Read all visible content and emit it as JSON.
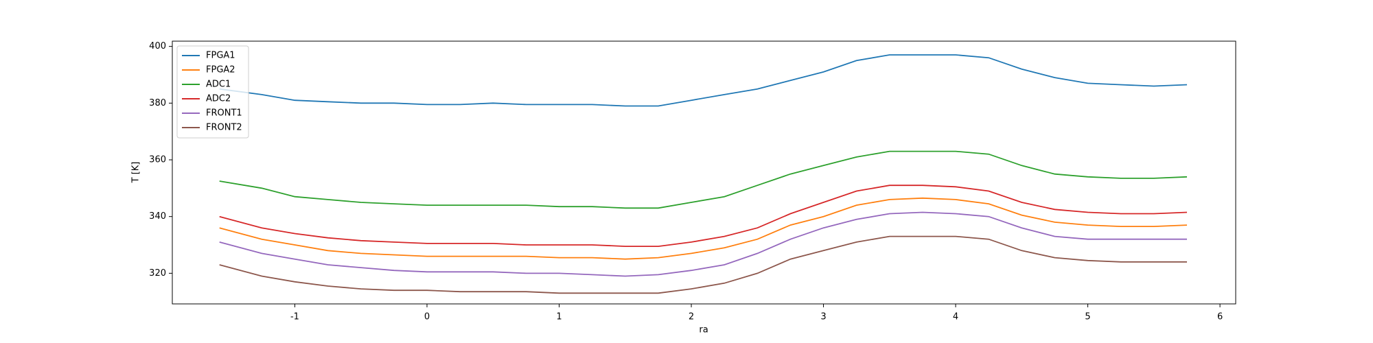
{
  "chart_data": {
    "type": "line",
    "xlabel": "ra",
    "ylabel": "T [K]",
    "x": [
      -1.57,
      -1.25,
      -1.0,
      -0.75,
      -0.5,
      -0.25,
      0,
      0.25,
      0.5,
      0.75,
      1.0,
      1.25,
      1.5,
      1.75,
      2.0,
      2.25,
      2.5,
      2.75,
      3.0,
      3.25,
      3.5,
      3.75,
      4.0,
      4.25,
      4.5,
      4.75,
      5.0,
      5.25,
      5.5,
      5.75
    ],
    "series": [
      {
        "name": "FPGA1",
        "color": "#1f77b4",
        "values": [
          385,
          383,
          381,
          380.5,
          380,
          380,
          379.5,
          379.5,
          380,
          379.5,
          379.5,
          379.5,
          379,
          379,
          381,
          383,
          385,
          388,
          391,
          395,
          397,
          397,
          397,
          396,
          392,
          389,
          387,
          386.5,
          386,
          386.5
        ]
      },
      {
        "name": "FPGA2",
        "color": "#ff7f0e",
        "values": [
          336,
          332,
          330,
          328,
          327,
          326.5,
          326,
          326,
          326,
          326,
          325.5,
          325.5,
          325,
          325.5,
          327,
          329,
          332,
          337,
          340,
          344,
          346,
          346.5,
          346,
          344.5,
          340.5,
          338,
          337,
          336.5,
          336.5,
          337
        ]
      },
      {
        "name": "ADC1",
        "color": "#2ca02c",
        "values": [
          352.5,
          350,
          347,
          346,
          345,
          344.5,
          344,
          344,
          344,
          344,
          343.5,
          343.5,
          343,
          343,
          345,
          347,
          351,
          355,
          358,
          361,
          363,
          363,
          363,
          362,
          358,
          355,
          354,
          353.5,
          353.5,
          354
        ]
      },
      {
        "name": "ADC2",
        "color": "#d62728",
        "values": [
          340,
          336,
          334,
          332.5,
          331.5,
          331,
          330.5,
          330.5,
          330.5,
          330,
          330,
          330,
          329.5,
          329.5,
          331,
          333,
          336,
          341,
          345,
          349,
          351,
          351,
          350.5,
          349,
          345,
          342.5,
          341.5,
          341,
          341,
          341.5
        ]
      },
      {
        "name": "FRONT1",
        "color": "#9467bd",
        "values": [
          331,
          327,
          325,
          323,
          322,
          321,
          320.5,
          320.5,
          320.5,
          320,
          320,
          319.5,
          319,
          319.5,
          321,
          323,
          327,
          332,
          336,
          339,
          341,
          341.5,
          341,
          340,
          336,
          333,
          332,
          332,
          332,
          332
        ]
      },
      {
        "name": "FRONT2",
        "color": "#8c564b",
        "values": [
          323,
          319,
          317,
          315.5,
          314.5,
          314,
          314,
          313.5,
          313.5,
          313.5,
          313,
          313,
          313,
          313,
          314.5,
          316.5,
          320,
          325,
          328,
          331,
          333,
          333,
          333,
          332,
          328,
          325.5,
          324.5,
          324,
          324,
          324
        ]
      }
    ],
    "xlim": [
      -1.927,
      6.119
    ],
    "xticks": [
      -1,
      0,
      1,
      2,
      3,
      4,
      5,
      6
    ],
    "ylim": [
      309.2,
      401.85
    ],
    "yticks": [
      320,
      340,
      360,
      380,
      400
    ],
    "legend": "upper left"
  }
}
